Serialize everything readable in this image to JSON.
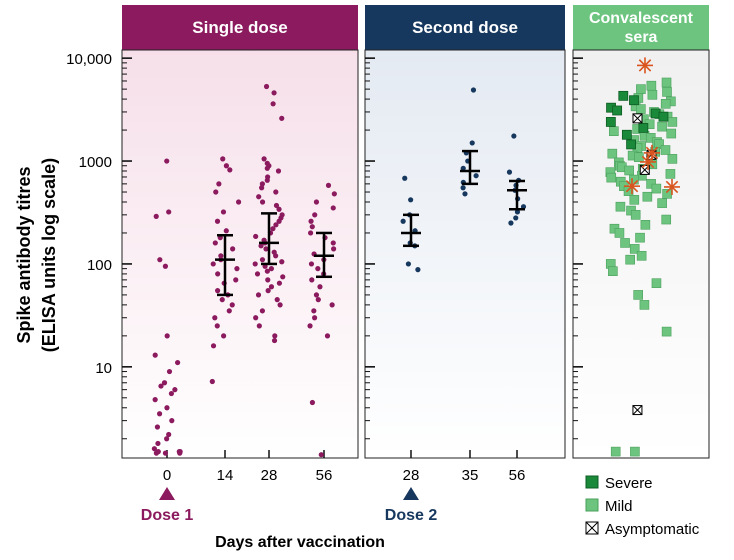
{
  "chart_data": {
    "type": "scatter",
    "ylabel_line1": "Spike antibody titres",
    "ylabel_line2": "(ELISA units log scale)",
    "xlabel": "Days after vaccination",
    "yscale": "log",
    "ylim": [
      1.3,
      12000
    ],
    "yticks": [
      10,
      100,
      1000,
      10000
    ],
    "ytick_labels": [
      "10",
      "100",
      "1000",
      "10,000"
    ],
    "panels": [
      {
        "title": "Single dose",
        "header_color": "#8B1A5E",
        "bg_color": "#f8e6ee",
        "point_color": "#8B1A5E",
        "marker_label": "Dose 1",
        "marker_at": "0",
        "categories": [
          "0",
          "14",
          "28",
          "56"
        ],
        "series": [
          {
            "category": "0",
            "values": [
              1000,
              320,
              290,
              110,
              95,
              20,
              13,
              11,
              9,
              7,
              6.5,
              6,
              5.5,
              4.8,
              4,
              3.5,
              3,
              2.6,
              2.2,
              2,
              1.8,
              1.6,
              1.5,
              1.5,
              1.45,
              1.45,
              1.45,
              1.5
            ]
          },
          {
            "category": "14",
            "values": [
              1050,
              900,
              820,
              600,
              500,
              400,
              320,
              260,
              210,
              180,
              160,
              140,
              120,
              110,
              100,
              90,
              80,
              70,
              65,
              55,
              50,
              45,
              40,
              35,
              30,
              25,
              20,
              16,
              7.2
            ]
          },
          {
            "category": "28",
            "values": [
              5300,
              4600,
              3600,
              2600,
              1050,
              950,
              900,
              850,
              800,
              700,
              650,
              600,
              550,
              500,
              450,
              400,
              370,
              340,
              300,
              280,
              260,
              240,
              220,
              200,
              185,
              170,
              160,
              150,
              140,
              130,
              120,
              110,
              105,
              100,
              95,
              90,
              85,
              80,
              75,
              70,
              65,
              60,
              55,
              50,
              45,
              40,
              35,
              30,
              25,
              20,
              18
            ]
          },
          {
            "category": "56",
            "values": [
              580,
              480,
              400,
              350,
              300,
              260,
              230,
              200,
              180,
              160,
              140,
              125,
              110,
              100,
              90,
              80,
              70,
              60,
              50,
              45,
              40,
              35,
              30,
              25,
              20,
              4.5,
              1.4
            ]
          }
        ],
        "summary": [
          {
            "category": "0"
          },
          {
            "category": "14",
            "median": 110,
            "low": 50,
            "high": 190
          },
          {
            "category": "28",
            "median": 160,
            "low": 100,
            "high": 310
          },
          {
            "category": "56",
            "median": 120,
            "low": 75,
            "high": 200
          }
        ]
      },
      {
        "title": "Second dose",
        "header_color": "#17385E",
        "bg_color": "#e6ecf3",
        "point_color": "#17385E",
        "marker_label": "Dose 2",
        "marker_at": "28",
        "categories": [
          "28",
          "35",
          "56"
        ],
        "series": [
          {
            "category": "28",
            "values": [
              680,
              420,
              300,
              260,
              210,
              160,
              150,
              100,
              88
            ]
          },
          {
            "category": "35",
            "values": [
              4900,
              1500,
              1200,
              1000,
              850,
              720,
              620,
              550,
              480
            ]
          },
          {
            "category": "56",
            "values": [
              1750,
              780,
              650,
              580,
              520,
              430,
              360,
              320,
              280,
              250
            ]
          }
        ],
        "summary": [
          {
            "category": "28",
            "median": 200,
            "low": 150,
            "high": 300
          },
          {
            "category": "35",
            "median": 800,
            "low": 600,
            "high": 1250
          },
          {
            "category": "56",
            "median": 520,
            "low": 340,
            "high": 640
          }
        ]
      },
      {
        "title_line1": "Convalescent",
        "title_line2": "sera",
        "header_color": "#6CC47E",
        "bg_color": "#f3f3f3",
        "severe_values": [
          4300,
          3900,
          3300,
          3100,
          2900,
          2700,
          2400,
          2100,
          1800,
          1450
        ],
        "mild_values": [
          5800,
          5400,
          5000,
          4700,
          4400,
          4100,
          3800,
          3600,
          3400,
          3200,
          3000,
          2850,
          2700,
          2550,
          2400,
          2280,
          2160,
          2050,
          1950,
          1850,
          1760,
          1680,
          1600,
          1530,
          1460,
          1400,
          1340,
          1280,
          1230,
          1180,
          1130,
          1090,
          1050,
          1010,
          970,
          930,
          900,
          870,
          840,
          810,
          780,
          750,
          720,
          690,
          660,
          630,
          600,
          570,
          540,
          510,
          480,
          450,
          420,
          390,
          360,
          330,
          300,
          270,
          240,
          220,
          200,
          180,
          160,
          140,
          120,
          110,
          100,
          85,
          65,
          50,
          40,
          22,
          1.5,
          1.5
        ],
        "asymptomatic_values": [
          2600,
          1150,
          820,
          3.8
        ],
        "star_values": [
          8500,
          1200,
          980,
          570,
          560
        ],
        "star_color": "#d9541e",
        "legend": [
          {
            "label": "Severe",
            "color": "#1a8a3a"
          },
          {
            "label": "Mild",
            "color": "#6CC47E"
          },
          {
            "label": "Asymptomatic",
            "color": "#ffffff"
          }
        ]
      }
    ]
  }
}
